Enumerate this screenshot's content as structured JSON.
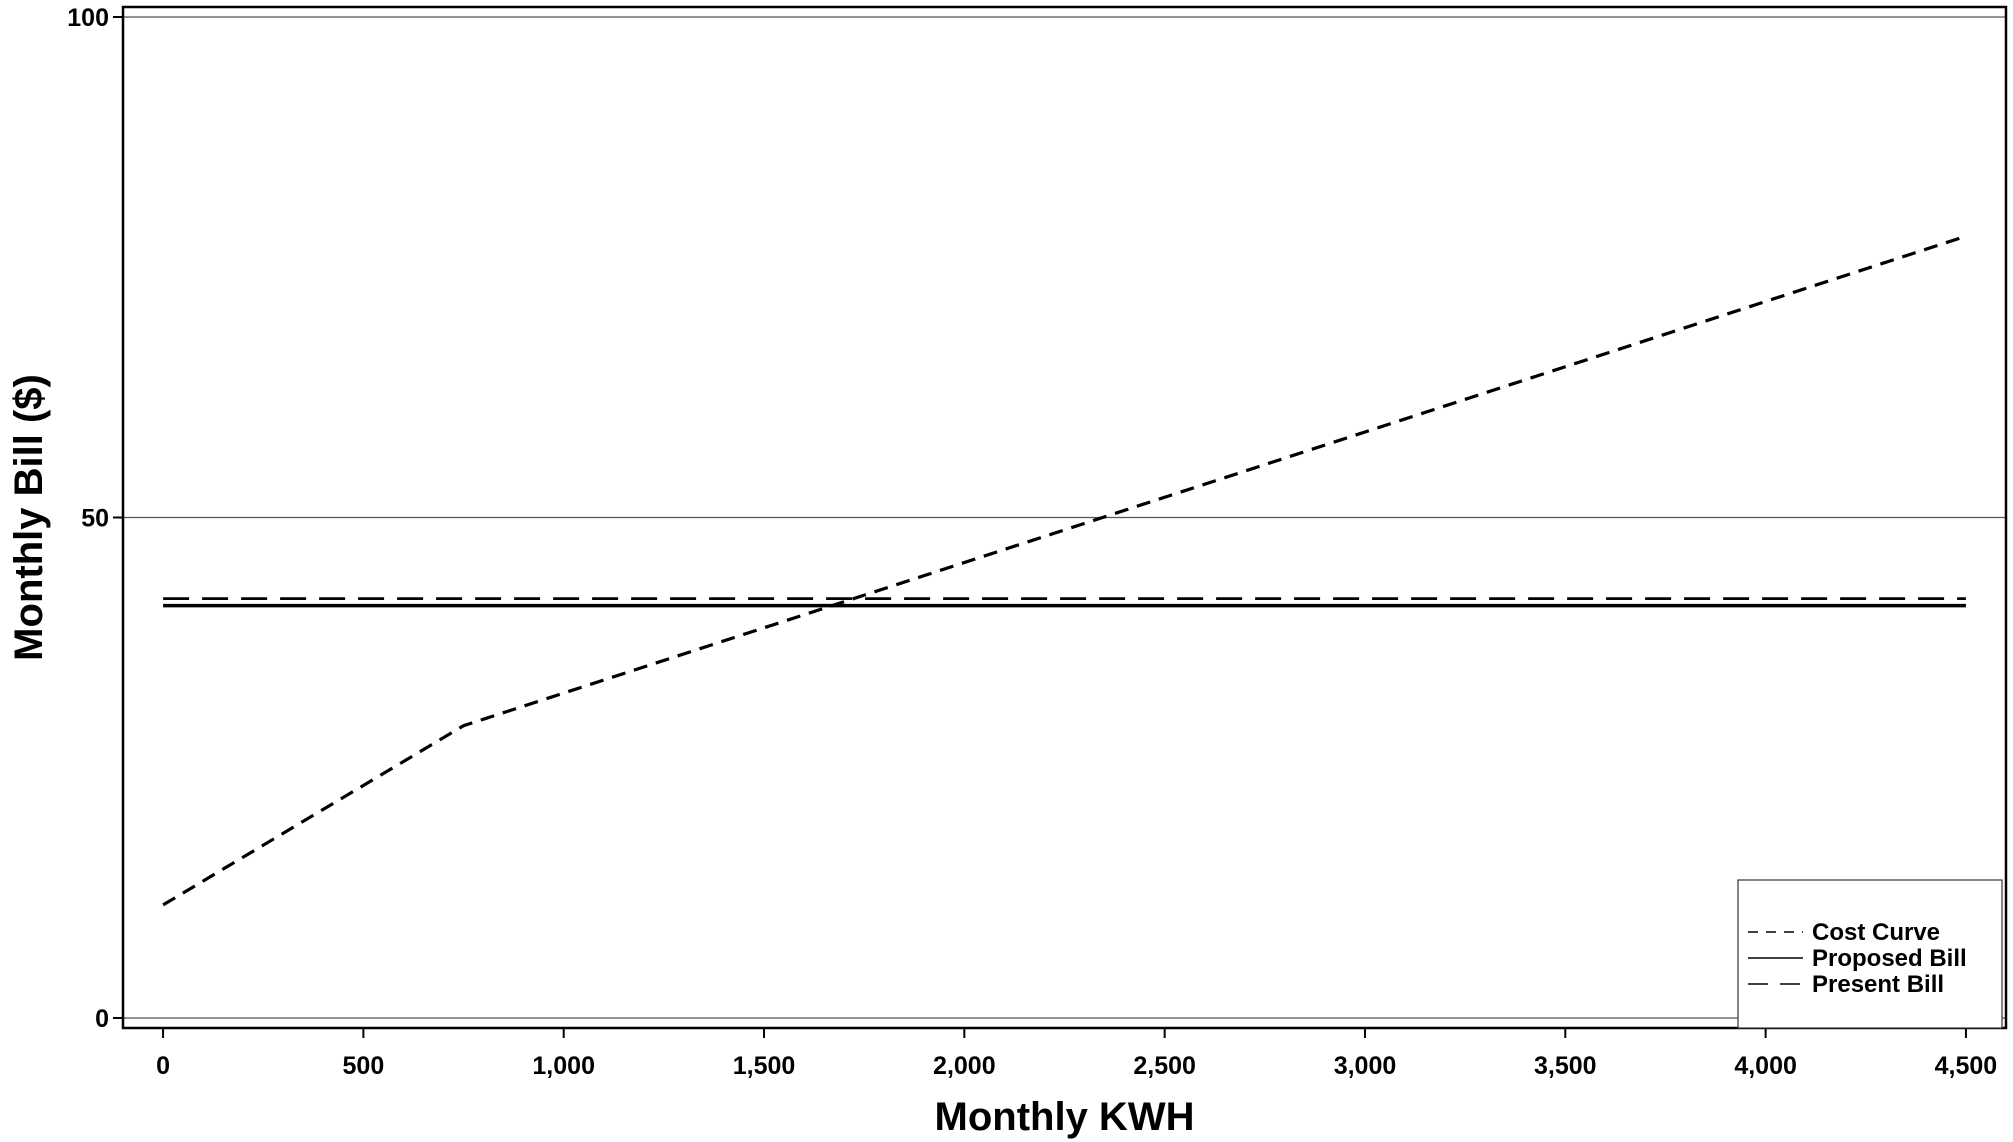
{
  "chart_data": {
    "type": "line",
    "xlabel": "Monthly KWH",
    "ylabel": "Monthly Bill ($)",
    "xlim": [
      -100,
      4600
    ],
    "ylim": [
      -1,
      101
    ],
    "x_ticks": [
      {
        "value": 0,
        "label": "0"
      },
      {
        "value": 500,
        "label": "500"
      },
      {
        "value": 1000,
        "label": "1,000"
      },
      {
        "value": 1500,
        "label": "1,500"
      },
      {
        "value": 2000,
        "label": "2,000"
      },
      {
        "value": 2500,
        "label": "2,500"
      },
      {
        "value": 3000,
        "label": "3,000"
      },
      {
        "value": 3500,
        "label": "3,500"
      },
      {
        "value": 4000,
        "label": "4,000"
      },
      {
        "value": 4500,
        "label": "4,500"
      }
    ],
    "y_ticks": [
      {
        "value": 0,
        "label": "0"
      },
      {
        "value": 50,
        "label": "50"
      },
      {
        "value": 100,
        "label": "100"
      }
    ],
    "gridlines_y": [
      0,
      50,
      100
    ],
    "grid": "horizontal",
    "legend_position": "bottom-right",
    "series": [
      {
        "name": "Cost Curve",
        "style": "short-dash",
        "color": "#000000",
        "points": [
          [
            0,
            11.3
          ],
          [
            750,
            29.2
          ],
          [
            4500,
            78.1
          ]
        ]
      },
      {
        "name": "Proposed Bill",
        "style": "solid",
        "color": "#000000",
        "points": [
          [
            0,
            41.2
          ],
          [
            4500,
            41.2
          ]
        ]
      },
      {
        "name": "Present Bill",
        "style": "long-dash",
        "color": "#000000",
        "points": [
          [
            0,
            41.9
          ],
          [
            4500,
            41.9
          ]
        ]
      }
    ]
  }
}
